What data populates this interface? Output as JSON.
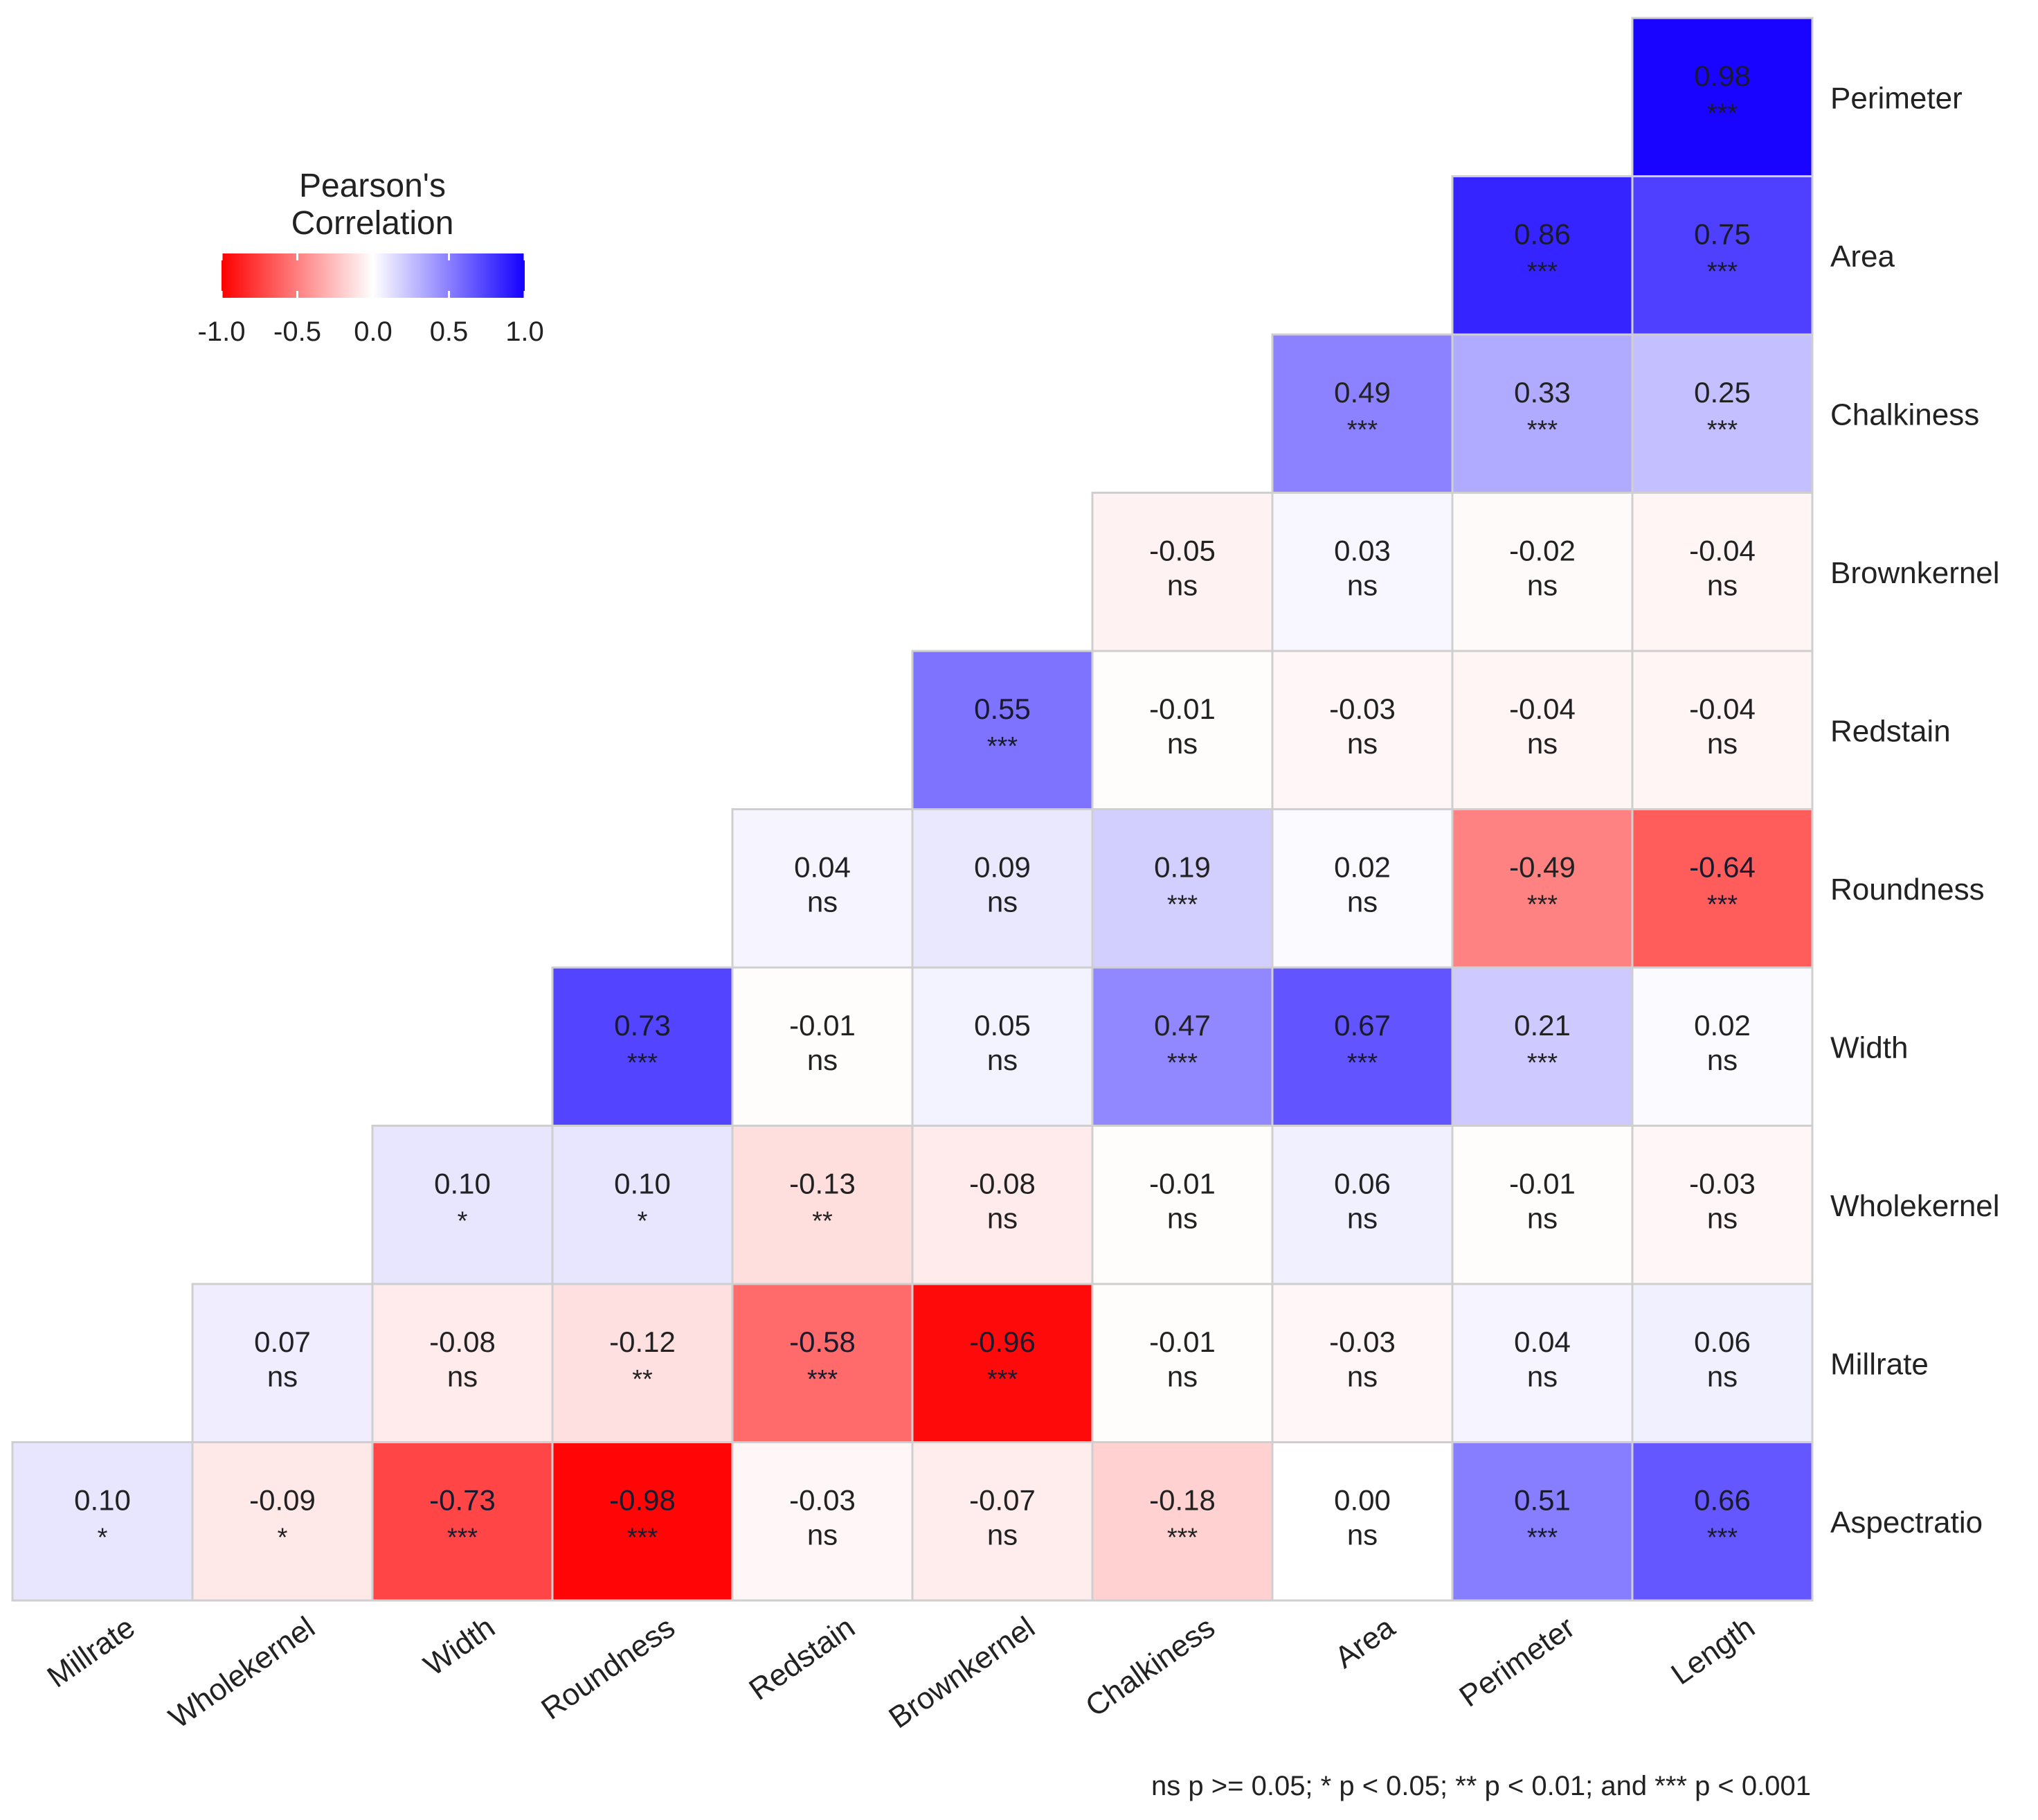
{
  "chart_data": {
    "type": "heatmap",
    "title": "",
    "legend": {
      "title": "Pearson's Correlation",
      "ticks": [
        "-1.0",
        "-0.5",
        "0.0",
        "0.5",
        "1.0"
      ],
      "range": [
        -1.0,
        1.0
      ],
      "colors": {
        "low": "#ff0000",
        "mid": "#ffffff",
        "high": "#1400ff"
      },
      "placement": "top-left"
    },
    "x_categories": [
      "Millrate",
      "Wholekernel",
      "Width",
      "Roundness",
      "Redstain",
      "Brownkernel",
      "Chalkiness",
      "Area",
      "Perimeter",
      "Length"
    ],
    "y_categories": [
      "Perimeter",
      "Area",
      "Chalkiness",
      "Brownkernel",
      "Redstain",
      "Roundness",
      "Width",
      "Wholekernel",
      "Millrate",
      "Aspectratio"
    ],
    "cells": [
      {
        "x": "Length",
        "y": "Perimeter",
        "value": 0.98,
        "sig": "***"
      },
      {
        "x": "Perimeter",
        "y": "Area",
        "value": 0.86,
        "sig": "***"
      },
      {
        "x": "Length",
        "y": "Area",
        "value": 0.75,
        "sig": "***"
      },
      {
        "x": "Area",
        "y": "Chalkiness",
        "value": 0.49,
        "sig": "***"
      },
      {
        "x": "Perimeter",
        "y": "Chalkiness",
        "value": 0.33,
        "sig": "***"
      },
      {
        "x": "Length",
        "y": "Chalkiness",
        "value": 0.25,
        "sig": "***"
      },
      {
        "x": "Chalkiness",
        "y": "Brownkernel",
        "value": -0.05,
        "sig": "ns"
      },
      {
        "x": "Area",
        "y": "Brownkernel",
        "value": 0.03,
        "sig": "ns"
      },
      {
        "x": "Perimeter",
        "y": "Brownkernel",
        "value": -0.02,
        "sig": "ns"
      },
      {
        "x": "Length",
        "y": "Brownkernel",
        "value": -0.04,
        "sig": "ns"
      },
      {
        "x": "Brownkernel",
        "y": "Redstain",
        "value": 0.55,
        "sig": "***"
      },
      {
        "x": "Chalkiness",
        "y": "Redstain",
        "value": -0.01,
        "sig": "ns"
      },
      {
        "x": "Area",
        "y": "Redstain",
        "value": -0.03,
        "sig": "ns"
      },
      {
        "x": "Perimeter",
        "y": "Redstain",
        "value": -0.04,
        "sig": "ns"
      },
      {
        "x": "Length",
        "y": "Redstain",
        "value": -0.04,
        "sig": "ns"
      },
      {
        "x": "Redstain",
        "y": "Roundness",
        "value": 0.04,
        "sig": "ns"
      },
      {
        "x": "Brownkernel",
        "y": "Roundness",
        "value": 0.09,
        "sig": "ns"
      },
      {
        "x": "Chalkiness",
        "y": "Roundness",
        "value": 0.19,
        "sig": "***"
      },
      {
        "x": "Area",
        "y": "Roundness",
        "value": 0.02,
        "sig": "ns"
      },
      {
        "x": "Perimeter",
        "y": "Roundness",
        "value": -0.49,
        "sig": "***"
      },
      {
        "x": "Length",
        "y": "Roundness",
        "value": -0.64,
        "sig": "***"
      },
      {
        "x": "Roundness",
        "y": "Width",
        "value": 0.73,
        "sig": "***"
      },
      {
        "x": "Redstain",
        "y": "Width",
        "value": -0.01,
        "sig": "ns"
      },
      {
        "x": "Brownkernel",
        "y": "Width",
        "value": 0.05,
        "sig": "ns"
      },
      {
        "x": "Chalkiness",
        "y": "Width",
        "value": 0.47,
        "sig": "***"
      },
      {
        "x": "Area",
        "y": "Width",
        "value": 0.67,
        "sig": "***"
      },
      {
        "x": "Perimeter",
        "y": "Width",
        "value": 0.21,
        "sig": "***"
      },
      {
        "x": "Length",
        "y": "Width",
        "value": 0.02,
        "sig": "ns"
      },
      {
        "x": "Width",
        "y": "Wholekernel",
        "value": 0.1,
        "sig": "*"
      },
      {
        "x": "Roundness",
        "y": "Wholekernel",
        "value": 0.1,
        "sig": "*"
      },
      {
        "x": "Redstain",
        "y": "Wholekernel",
        "value": -0.13,
        "sig": "**"
      },
      {
        "x": "Brownkernel",
        "y": "Wholekernel",
        "value": -0.08,
        "sig": "ns"
      },
      {
        "x": "Chalkiness",
        "y": "Wholekernel",
        "value": -0.01,
        "sig": "ns"
      },
      {
        "x": "Area",
        "y": "Wholekernel",
        "value": 0.06,
        "sig": "ns"
      },
      {
        "x": "Perimeter",
        "y": "Wholekernel",
        "value": -0.01,
        "sig": "ns"
      },
      {
        "x": "Length",
        "y": "Wholekernel",
        "value": -0.03,
        "sig": "ns"
      },
      {
        "x": "Wholekernel",
        "y": "Millrate",
        "value": 0.07,
        "sig": "ns"
      },
      {
        "x": "Width",
        "y": "Millrate",
        "value": -0.08,
        "sig": "ns"
      },
      {
        "x": "Roundness",
        "y": "Millrate",
        "value": -0.12,
        "sig": "**"
      },
      {
        "x": "Redstain",
        "y": "Millrate",
        "value": -0.58,
        "sig": "***"
      },
      {
        "x": "Brownkernel",
        "y": "Millrate",
        "value": -0.96,
        "sig": "***"
      },
      {
        "x": "Chalkiness",
        "y": "Millrate",
        "value": -0.01,
        "sig": "ns"
      },
      {
        "x": "Area",
        "y": "Millrate",
        "value": -0.03,
        "sig": "ns"
      },
      {
        "x": "Perimeter",
        "y": "Millrate",
        "value": 0.04,
        "sig": "ns"
      },
      {
        "x": "Length",
        "y": "Millrate",
        "value": 0.06,
        "sig": "ns"
      },
      {
        "x": "Millrate",
        "y": "Aspectratio",
        "value": 0.1,
        "sig": "*"
      },
      {
        "x": "Wholekernel",
        "y": "Aspectratio",
        "value": -0.09,
        "sig": "*"
      },
      {
        "x": "Width",
        "y": "Aspectratio",
        "value": -0.73,
        "sig": "***"
      },
      {
        "x": "Roundness",
        "y": "Aspectratio",
        "value": -0.98,
        "sig": "***"
      },
      {
        "x": "Redstain",
        "y": "Aspectratio",
        "value": -0.03,
        "sig": "ns"
      },
      {
        "x": "Brownkernel",
        "y": "Aspectratio",
        "value": -0.07,
        "sig": "ns"
      },
      {
        "x": "Chalkiness",
        "y": "Aspectratio",
        "value": -0.18,
        "sig": "***"
      },
      {
        "x": "Area",
        "y": "Aspectratio",
        "value": 0.0,
        "sig": "ns"
      },
      {
        "x": "Perimeter",
        "y": "Aspectratio",
        "value": 0.51,
        "sig": "***"
      },
      {
        "x": "Length",
        "y": "Aspectratio",
        "value": 0.66,
        "sig": "***"
      }
    ],
    "footnote": "ns p >= 0.05; * p < 0.05; ** p < 0.01; and *** p < 0.001"
  }
}
